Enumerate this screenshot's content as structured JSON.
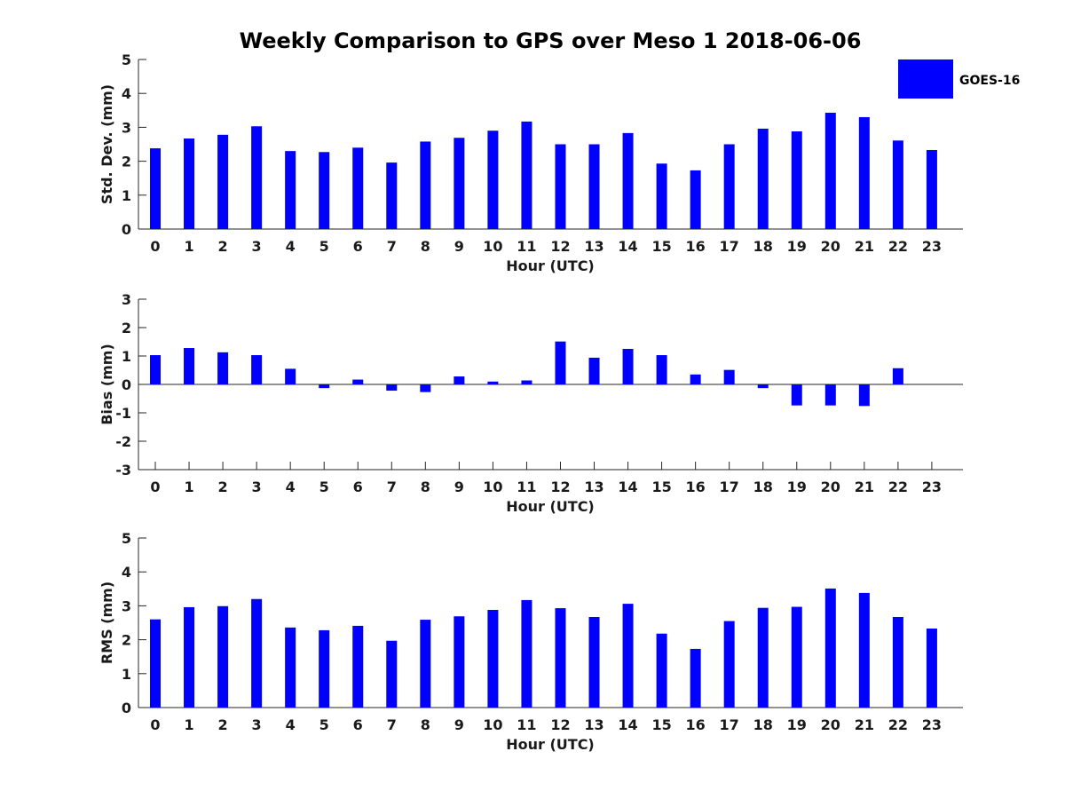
{
  "chart_data": [
    {
      "type": "bar",
      "title": "Weekly Comparison to GPS over Meso 1 2018-06-06",
      "xlabel": "Hour (UTC)",
      "ylabel": "Std. Dev. (mm)",
      "categories": [
        "0",
        "1",
        "2",
        "3",
        "4",
        "5",
        "6",
        "7",
        "8",
        "9",
        "10",
        "11",
        "12",
        "13",
        "14",
        "15",
        "16",
        "17",
        "18",
        "19",
        "20",
        "21",
        "22",
        "23"
      ],
      "series": [
        {
          "name": "GOES-16",
          "color": "#0000ff",
          "values": [
            2.38,
            2.67,
            2.78,
            3.03,
            2.3,
            2.27,
            2.4,
            1.96,
            2.58,
            2.69,
            2.9,
            3.17,
            2.5,
            2.5,
            2.83,
            1.93,
            1.73,
            2.5,
            2.96,
            2.88,
            3.43,
            3.3,
            2.61,
            2.33
          ]
        }
      ],
      "ylim": [
        0,
        5
      ],
      "yticks": [
        "0",
        "1",
        "2",
        "3",
        "4",
        "5"
      ],
      "legend": {
        "labels": [
          "GOES-16"
        ],
        "location": "top-right"
      }
    },
    {
      "type": "bar",
      "xlabel": "Hour (UTC)",
      "ylabel": "Bias (mm)",
      "categories": [
        "0",
        "1",
        "2",
        "3",
        "4",
        "5",
        "6",
        "7",
        "8",
        "9",
        "10",
        "11",
        "12",
        "13",
        "14",
        "15",
        "16",
        "17",
        "18",
        "19",
        "20",
        "21",
        "22",
        "23"
      ],
      "series": [
        {
          "name": "GOES-16",
          "color": "#0000ff",
          "values": [
            1.03,
            1.28,
            1.13,
            1.03,
            0.55,
            -0.13,
            0.17,
            -0.22,
            -0.27,
            0.28,
            0.1,
            0.14,
            1.51,
            0.94,
            1.25,
            1.03,
            0.35,
            0.51,
            -0.13,
            -0.74,
            -0.74,
            -0.76,
            0.57,
            0.0
          ]
        }
      ],
      "ylim": [
        -3,
        3
      ],
      "yticks": [
        "-3",
        "-2",
        "-1",
        "0",
        "1",
        "2",
        "3"
      ]
    },
    {
      "type": "bar",
      "xlabel": "Hour (UTC)",
      "ylabel": "RMS (mm)",
      "categories": [
        "0",
        "1",
        "2",
        "3",
        "4",
        "5",
        "6",
        "7",
        "8",
        "9",
        "10",
        "11",
        "12",
        "13",
        "14",
        "15",
        "16",
        "17",
        "18",
        "19",
        "20",
        "21",
        "22",
        "23"
      ],
      "series": [
        {
          "name": "GOES-16",
          "color": "#0000ff",
          "values": [
            2.6,
            2.96,
            2.99,
            3.2,
            2.36,
            2.28,
            2.41,
            1.97,
            2.59,
            2.69,
            2.88,
            3.17,
            2.93,
            2.67,
            3.06,
            2.18,
            1.73,
            2.55,
            2.94,
            2.97,
            3.51,
            3.38,
            2.67,
            2.33
          ]
        }
      ],
      "ylim": [
        0,
        5
      ],
      "yticks": [
        "0",
        "1",
        "2",
        "3",
        "4",
        "5"
      ]
    }
  ]
}
